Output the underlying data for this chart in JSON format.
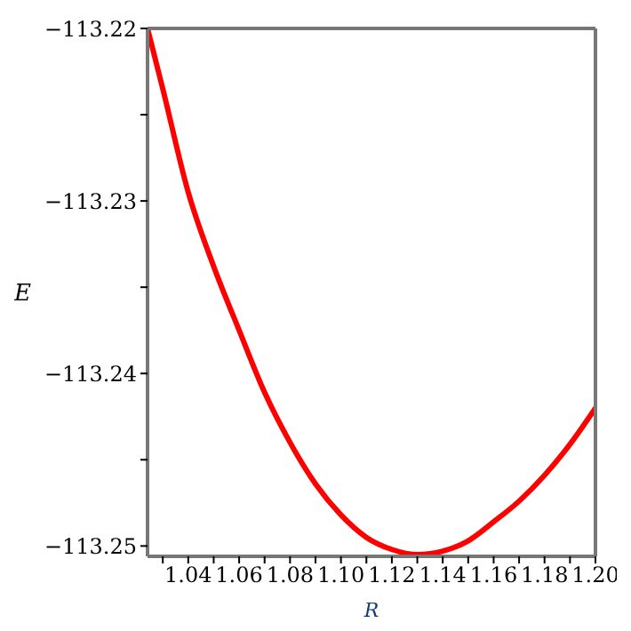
{
  "chart_data": {
    "type": "line",
    "xlabel": "R",
    "ylabel": "E",
    "x": [
      1.024,
      1.03,
      1.04,
      1.05,
      1.06,
      1.07,
      1.08,
      1.09,
      1.1,
      1.11,
      1.12,
      1.13,
      1.14,
      1.15,
      1.16,
      1.17,
      1.18,
      1.19,
      1.2
    ],
    "series": [
      {
        "color": "#ff0000",
        "values": [
          -113.22,
          -113.2235,
          -113.2295,
          -113.2338,
          -113.2375,
          -113.2411,
          -113.244,
          -113.2464,
          -113.2482,
          -113.2495,
          -113.2502,
          -113.2505,
          -113.2503,
          -113.2497,
          -113.2486,
          -113.2474,
          -113.2459,
          -113.2441,
          -113.242
        ]
      }
    ],
    "xlim": [
      1.024,
      1.2
    ],
    "xticks": [
      {
        "value": 1.03,
        "label": null
      },
      1.04,
      {
        "value": 1.05,
        "label": null
      },
      1.06,
      {
        "value": 1.07,
        "label": null
      },
      1.08,
      {
        "value": 1.09,
        "label": null
      },
      {
        "value": 1.1,
        "label": "1.10"
      },
      {
        "value": 1.11,
        "label": null
      },
      1.12,
      {
        "value": 1.13,
        "label": null
      },
      1.14,
      {
        "value": 1.15,
        "label": null
      },
      1.16,
      {
        "value": 1.17,
        "label": null
      },
      1.18,
      {
        "value": 1.19,
        "label": null
      },
      {
        "value": 1.2,
        "label": "1.20"
      }
    ],
    "ylim": [
      -113.2506,
      -113.22
    ],
    "yticks": [
      -113.25,
      {
        "value": -113.245,
        "label": null
      },
      -113.24,
      {
        "value": -113.235,
        "label": null
      },
      -113.23,
      {
        "value": -113.225,
        "label": null
      },
      -113.22
    ],
    "grid": false,
    "legend": false,
    "marker": "none",
    "line_style": "solid"
  }
}
